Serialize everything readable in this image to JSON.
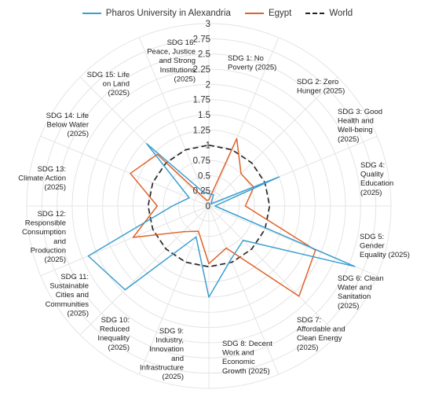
{
  "chart_data": {
    "type": "radar",
    "axis_range": [
      0,
      3
    ],
    "ticks": [
      "0",
      "0.25",
      "0.5",
      "0.75",
      "1",
      "1.25",
      "1.5",
      "1.75",
      "2",
      "2.25",
      "2.5",
      "2.75",
      "3"
    ],
    "grid": true,
    "legend_position": "top-center",
    "categories": [
      [
        "SDG 1: No",
        "Poverty (2025)"
      ],
      [
        "SDG 2: Zero",
        "Hunger (2025)"
      ],
      [
        "SDG 3: Good",
        "Health and",
        "Well-being",
        "(2025)"
      ],
      [
        "SDG 4:",
        "Quality",
        "Education",
        "(2025)"
      ],
      [
        "SDG 5:",
        "Gender",
        "Equality (2025)"
      ],
      [
        "SDG 6: Clean",
        "Water and",
        "Sanitation",
        "(2025)"
      ],
      [
        "SDG 7:",
        "Affordable and",
        "Clean Energy",
        "(2025)"
      ],
      [
        "SDG 8: Decent",
        "Work and",
        "Economic",
        "Growth (2025)"
      ],
      [
        "SDG 9:",
        "Industry,",
        "Innovation",
        "and",
        "Infrastructure",
        "(2025)"
      ],
      [
        "SDG 10:",
        "Reduced",
        "Inequality",
        "(2025)"
      ],
      [
        "SDG 11:",
        "Sustainable",
        "Cities and",
        "Communities",
        "(2025)"
      ],
      [
        "SDG 12:",
        "Responsible",
        "Consumption",
        "and",
        "Production",
        "(2025)"
      ],
      [
        "SDG 13:",
        "Climate Action",
        "(2025)"
      ],
      [
        "SDG 14: Life",
        "Below Water",
        "(2025)"
      ],
      [
        "SDG 15: Life",
        "on Land",
        "(2025)"
      ],
      [
        "SDG 16:",
        "Peace, Justice",
        "and Strong",
        "Institutions",
        "(2025)"
      ]
    ],
    "series": [
      {
        "name": "Pharos University in Alexandria",
        "color": "#3a9fd0",
        "dash": "solid",
        "values": [
          0.2,
          0.2,
          0.05,
          1.25,
          0.1,
          2.6,
          0.8,
          0.95,
          1.5,
          0.55,
          1.95,
          2.15,
          0.6,
          0.35,
          1.45,
          0.25
        ]
      },
      {
        "name": "Egypt",
        "color": "#e0622a",
        "dash": "solid",
        "values": [
          0.1,
          1.2,
          0.75,
          0.8,
          0.6,
          1.9,
          2.1,
          0.75,
          0.95,
          0.45,
          0.6,
          1.35,
          0.85,
          1.4,
          1.2,
          0.1
        ]
      },
      {
        "name": "World",
        "color": "#222222",
        "dash": "dashed",
        "values": [
          1,
          1,
          1,
          1,
          1,
          1,
          1,
          1,
          1,
          1,
          1,
          1,
          1,
          1,
          1,
          1
        ]
      }
    ]
  }
}
